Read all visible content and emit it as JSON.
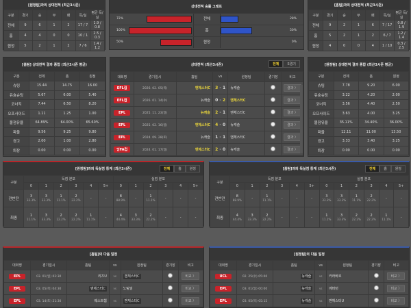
{
  "colors": {
    "red": "#c8232a",
    "blue": "#2f54c8",
    "highlight": "#e8d43c"
  },
  "h2h_left": {
    "title": "[원정팀]과의 상대전적 (최근3시즌)",
    "headers": [
      "구분",
      "경기",
      "승",
      "무",
      "패",
      "득/실",
      "평균 득/실"
    ],
    "rows": [
      [
        "전체",
        "9",
        "6",
        "1",
        "2",
        "17 / 7",
        "1.9 / 0.8"
      ],
      [
        "홈",
        "4",
        "4",
        "0",
        "0",
        "10 / 1",
        "2.5 / 0.3"
      ],
      [
        "원정",
        "5",
        "2",
        "1",
        "2",
        "7 / 6",
        "1.4 / 1.2"
      ]
    ]
  },
  "h2h_right": {
    "title": "[홈팀]과의 상대전적 (최근3시즌)",
    "headers": [
      "구분",
      "경기",
      "승",
      "무",
      "패",
      "득/실",
      "평균 득/실"
    ],
    "rows": [
      [
        "전체",
        "9",
        "2",
        "1",
        "6",
        "7 / 17",
        "0.8 / 1.9"
      ],
      [
        "홈",
        "5",
        "2",
        "1",
        "2",
        "6 / 7",
        "1.2 / 1.4"
      ],
      [
        "원정",
        "4",
        "0",
        "0",
        "4",
        "1 / 10",
        "0.3 / 2.5"
      ]
    ]
  },
  "winrate": {
    "title": "상대전적 승률 그래프",
    "rows": [
      {
        "label": "전체",
        "left": 72,
        "left_text": "72%",
        "right": 28,
        "right_text": "28%"
      },
      {
        "label": "홈",
        "left": 100,
        "left_text": "100%",
        "right": 50,
        "right_text": "50%"
      },
      {
        "label": "원정",
        "left": 50,
        "left_text": "50%",
        "right": 0,
        "right_text": "0%"
      }
    ]
  },
  "avg_left": {
    "title": "[홈팀] 상대전적 결과 종합 (최근3시즌 평균)",
    "headers": [
      "구분",
      "전체",
      "홈",
      "원정"
    ],
    "rows": [
      [
        "슈팅",
        "15.44",
        "14.75",
        "16.00"
      ],
      [
        "유효슈팅",
        "5.67",
        "6.00",
        "5.40"
      ],
      [
        "코너킥",
        "7.44",
        "6.50",
        "8.20"
      ],
      [
        "오프사이드",
        "1.11",
        "1.25",
        "1.00"
      ],
      [
        "볼점유율",
        "64.89%",
        "64.00%",
        "65.60%"
      ],
      [
        "파울",
        "9.56",
        "9.25",
        "9.80"
      ],
      [
        "경고",
        "2.00",
        "1.00",
        "2.80"
      ],
      [
        "퇴장",
        "0.00",
        "0.00",
        "0.00"
      ]
    ]
  },
  "avg_right": {
    "title": "[원정팀] 상대전적 결과 종합 (최근3시즌 평균)",
    "headers": [
      "구분",
      "전체",
      "홈",
      "원정"
    ],
    "rows": [
      [
        "슈팅",
        "7.78",
        "9.20",
        "6.00"
      ],
      [
        "유효슈팅",
        "3.22",
        "4.20",
        "2.00"
      ],
      [
        "코너킥",
        "3.56",
        "4.40",
        "2.50"
      ],
      [
        "오프사이드",
        "3.63",
        "4.00",
        "3.25"
      ],
      [
        "볼점유율",
        "35.11%",
        "34.40%",
        "36.00%"
      ],
      [
        "파울",
        "12.11",
        "11.00",
        "13.50"
      ],
      [
        "경고",
        "3.33",
        "3.40",
        "3.25"
      ],
      [
        "퇴장",
        "0.00",
        "0.00",
        "0.00"
      ]
    ]
  },
  "recent": {
    "title": "상대전적 (최근3시즌)",
    "tabs": [
      "전체",
      "5경기"
    ],
    "headers": [
      "대회명",
      "경기일시",
      "홈팀",
      "vs",
      "원정팀",
      "경기장",
      "비고"
    ],
    "button": "결과 〉",
    "rows": [
      {
        "league": "EFL컵",
        "date": "2026. 02. 05(목)",
        "home": "맨체스터C",
        "hs": "3",
        "as": "1",
        "away": "뉴캐슬",
        "win": "home"
      },
      {
        "league": "EFL컵",
        "date": "2026. 01. 14(수)",
        "home": "뉴캐슬",
        "hs": "0",
        "as": "2",
        "away": "맨체스터C",
        "win": "away"
      },
      {
        "league": "EPL",
        "date": "2025. 11. 23(일)",
        "home": "뉴캐슬",
        "hs": "2",
        "as": "1",
        "away": "맨체스터C",
        "win": "home"
      },
      {
        "league": "EPL",
        "date": "2025. 02. 16(일)",
        "home": "맨체스터C",
        "hs": "4",
        "as": "0",
        "away": "뉴캐슬",
        "win": "home"
      },
      {
        "league": "EPL",
        "date": "2024. 09. 28(토)",
        "home": "뉴캐슬",
        "hs": "1",
        "as": "1",
        "away": "맨체스터C",
        "win": "draw"
      },
      {
        "league": "잉FA컵",
        "date": "2024. 01. 17(일)",
        "home": "맨체스터C",
        "hs": "2",
        "as": "0",
        "away": "뉴캐슬",
        "win": "home"
      }
    ]
  },
  "goals_left": {
    "title": "[원정팀]과의 득실점 통계 (최근3시즌)",
    "tabs": [
      "전체",
      "홈",
      "원정"
    ],
    "group_scored": "득점 분포",
    "group_conceded": "실점 분포",
    "label_header": "구분",
    "cols": [
      "0",
      "1",
      "2",
      "3",
      "4",
      "5+"
    ],
    "rows": [
      {
        "label": "전반전",
        "scored": [
          [
            "3",
            "33.3%"
          ],
          [
            "3",
            "33.3%"
          ],
          [
            "1",
            "11.1%"
          ],
          [
            "2",
            "22.2%"
          ],
          [
            "-",
            ""
          ],
          [
            "-",
            ""
          ]
        ],
        "conceded": [
          [
            "8",
            "88.9%"
          ],
          [
            "-",
            ""
          ],
          [
            "1",
            "11.1%"
          ],
          [
            "-",
            ""
          ],
          [
            "-",
            ""
          ],
          [
            "-",
            ""
          ]
        ]
      },
      {
        "label": "최종",
        "scored": [
          [
            "1",
            "11.1%"
          ],
          [
            "3",
            "33.3%"
          ],
          [
            "2",
            "22.2%"
          ],
          [
            "2",
            "22.2%"
          ],
          [
            "1",
            "11.1%"
          ],
          [
            "-",
            ""
          ]
        ],
        "conceded": [
          [
            "4",
            "44.4%"
          ],
          [
            "3",
            "33.3%"
          ],
          [
            "2",
            "22.2%"
          ],
          [
            "-",
            ""
          ],
          [
            "-",
            ""
          ],
          [
            "-",
            ""
          ]
        ]
      }
    ]
  },
  "goals_right": {
    "title": "[홈팀]과의 득실점 통계 (최근3시즌)",
    "tabs": [
      "전체",
      "홈",
      "원정"
    ],
    "group_scored": "득점 분포",
    "group_conceded": "실점 분포",
    "label_header": "구분",
    "cols": [
      "0",
      "1",
      "2",
      "3",
      "4",
      "5+"
    ],
    "rows": [
      {
        "label": "전반전",
        "scored": [
          [
            "8",
            "88.9%"
          ],
          [
            "-",
            ""
          ],
          [
            "1",
            "11.1%"
          ],
          [
            "-",
            ""
          ],
          [
            "-",
            ""
          ],
          [
            "-",
            ""
          ]
        ],
        "conceded": [
          [
            "3",
            "33.3%"
          ],
          [
            "3",
            "33.3%"
          ],
          [
            "1",
            "11.1%"
          ],
          [
            "2",
            "22.2%"
          ],
          [
            "-",
            ""
          ],
          [
            "-",
            ""
          ]
        ]
      },
      {
        "label": "최종",
        "scored": [
          [
            "4",
            "44.4%"
          ],
          [
            "3",
            "33.3%"
          ],
          [
            "2",
            "22.2%"
          ],
          [
            "-",
            ""
          ],
          [
            "-",
            ""
          ],
          [
            "-",
            ""
          ]
        ],
        "conceded": [
          [
            "1",
            "11.1%"
          ],
          [
            "3",
            "33.3%"
          ],
          [
            "2",
            "22.2%"
          ],
          [
            "2",
            "22.2%"
          ],
          [
            "1",
            "11.1%"
          ],
          [
            "-",
            ""
          ]
        ]
      }
    ]
  },
  "next_left": {
    "title": "[홈팀]의 다음 일정",
    "headers": [
      "대회명",
      "경기일시",
      "홈팀",
      "vs",
      "원정팀",
      "경기장",
      "비고"
    ],
    "button": "비교 〉",
    "rows": [
      {
        "league": "EPL",
        "date": "03. 01(일) 02:30",
        "home": "리즈U",
        "away": "맨체스터C",
        "team": "away"
      },
      {
        "league": "EPL",
        "date": "03. 05(목) 04:30",
        "home": "맨체스터C",
        "away": "노팅엄",
        "team": "home"
      },
      {
        "league": "EPL",
        "date": "03. 14(토) 21:30",
        "home": "웨스트햄",
        "away": "맨체스터C",
        "team": "away"
      }
    ]
  },
  "next_right": {
    "title": "[원정팀]의 다음 일정",
    "headers": [
      "대회명",
      "경기일시",
      "홈팀",
      "vs",
      "원정팀",
      "경기장",
      "비고"
    ],
    "button": "비교 〉",
    "rows": [
      {
        "league": "UCL",
        "date": "02. 25(수) 05:00",
        "home": "뉴캐슬",
        "away": "카라바흐",
        "team": "home"
      },
      {
        "league": "EPL",
        "date": "03. 01(일) 00:00",
        "home": "뉴캐슬",
        "away": "에버턴",
        "team": "home"
      },
      {
        "league": "EPL",
        "date": "03. 05(목) 05:15",
        "home": "뉴캐슬",
        "away": "맨체스터U",
        "team": "home"
      }
    ]
  }
}
